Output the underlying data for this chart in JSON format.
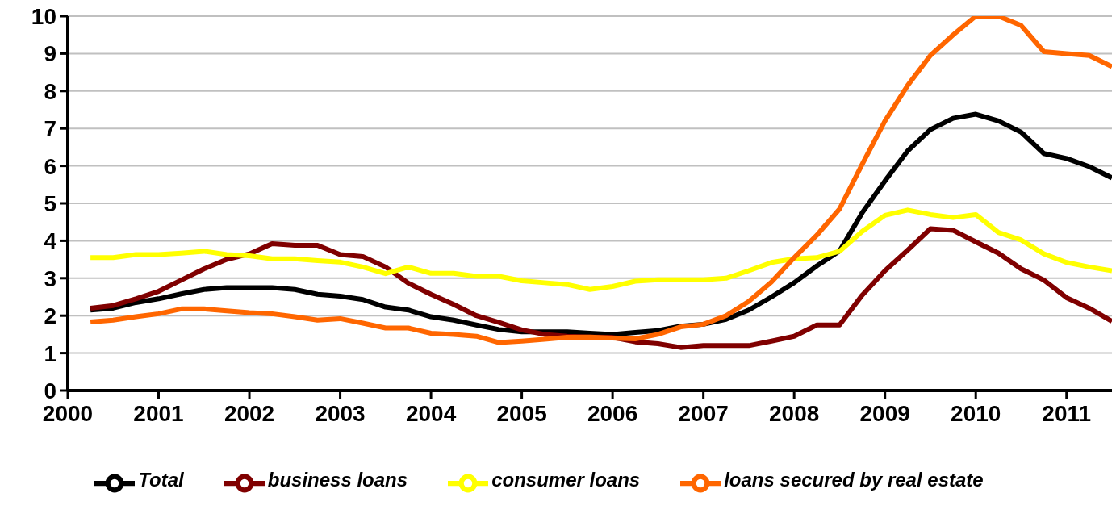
{
  "chart_data": {
    "type": "line",
    "x": [
      2000.25,
      2000.5,
      2000.75,
      2001,
      2001.25,
      2001.5,
      2001.75,
      2002,
      2002.25,
      2002.5,
      2002.75,
      2003,
      2003.25,
      2003.5,
      2003.75,
      2004,
      2004.25,
      2004.5,
      2004.75,
      2005,
      2005.25,
      2005.5,
      2005.75,
      2006,
      2006.25,
      2006.5,
      2006.75,
      2007,
      2007.25,
      2007.5,
      2007.75,
      2008,
      2008.25,
      2008.5,
      2008.75,
      2009,
      2009.25,
      2009.5,
      2009.75,
      2010,
      2010.25,
      2010.5,
      2010.75,
      2011,
      2011.25,
      2011.5
    ],
    "series": [
      {
        "name": "Total",
        "color": "#000000",
        "values": [
          2.15,
          2.2,
          2.35,
          2.45,
          2.58,
          2.7,
          2.75,
          2.75,
          2.75,
          2.7,
          2.57,
          2.52,
          2.43,
          2.23,
          2.15,
          1.97,
          1.88,
          1.75,
          1.63,
          1.57,
          1.57,
          1.57,
          1.53,
          1.5,
          1.55,
          1.6,
          1.72,
          1.77,
          1.9,
          2.15,
          2.5,
          2.88,
          3.33,
          3.73,
          4.75,
          5.6,
          6.4,
          6.97,
          7.27,
          7.38,
          7.2,
          6.9,
          6.33,
          6.2,
          5.98,
          5.68
        ]
      },
      {
        "name": "business loans",
        "color": "#800000",
        "values": [
          2.2,
          2.27,
          2.45,
          2.65,
          2.95,
          3.25,
          3.5,
          3.65,
          3.92,
          3.88,
          3.88,
          3.63,
          3.58,
          3.3,
          2.87,
          2.57,
          2.3,
          2.0,
          1.82,
          1.62,
          1.5,
          1.45,
          1.43,
          1.42,
          1.3,
          1.25,
          1.15,
          1.2,
          1.2,
          1.2,
          1.32,
          1.45,
          1.75,
          1.75,
          2.55,
          3.2,
          3.75,
          4.32,
          4.28,
          3.97,
          3.67,
          3.25,
          2.95,
          2.48,
          2.2,
          1.85
        ]
      },
      {
        "name": "consumer loans",
        "color": "#ffff00",
        "values": [
          3.55,
          3.55,
          3.63,
          3.63,
          3.67,
          3.72,
          3.63,
          3.6,
          3.52,
          3.52,
          3.47,
          3.43,
          3.3,
          3.12,
          3.3,
          3.13,
          3.13,
          3.05,
          3.05,
          2.93,
          2.88,
          2.83,
          2.7,
          2.78,
          2.92,
          2.96,
          2.96,
          2.96,
          3.0,
          3.2,
          3.42,
          3.52,
          3.55,
          3.72,
          4.25,
          4.68,
          4.82,
          4.7,
          4.62,
          4.7,
          4.22,
          4.02,
          3.65,
          3.42,
          3.3,
          3.2
        ]
      },
      {
        "name": "loans secured by real estate",
        "color": "#ff6600",
        "values": [
          1.83,
          1.88,
          1.97,
          2.05,
          2.18,
          2.18,
          2.13,
          2.08,
          2.05,
          1.97,
          1.88,
          1.92,
          1.8,
          1.67,
          1.67,
          1.53,
          1.5,
          1.45,
          1.28,
          1.32,
          1.37,
          1.42,
          1.43,
          1.4,
          1.38,
          1.5,
          1.7,
          1.77,
          2.0,
          2.38,
          2.9,
          3.55,
          4.15,
          4.85,
          6.05,
          7.2,
          8.15,
          8.95,
          9.5,
          10.0,
          10.0,
          9.75,
          9.05,
          9.0,
          8.95,
          8.65
        ]
      }
    ],
    "xlim": [
      2000,
      2011.5
    ],
    "xticks": [
      2000,
      2001,
      2002,
      2003,
      2004,
      2005,
      2006,
      2007,
      2008,
      2009,
      2010,
      2011
    ],
    "ylim": [
      0,
      10
    ],
    "yticks": [
      0,
      1,
      2,
      3,
      4,
      5,
      6,
      7,
      8,
      9,
      10
    ],
    "grid": "y",
    "legend": "bottom",
    "marker": "none",
    "line_style": "solid"
  }
}
